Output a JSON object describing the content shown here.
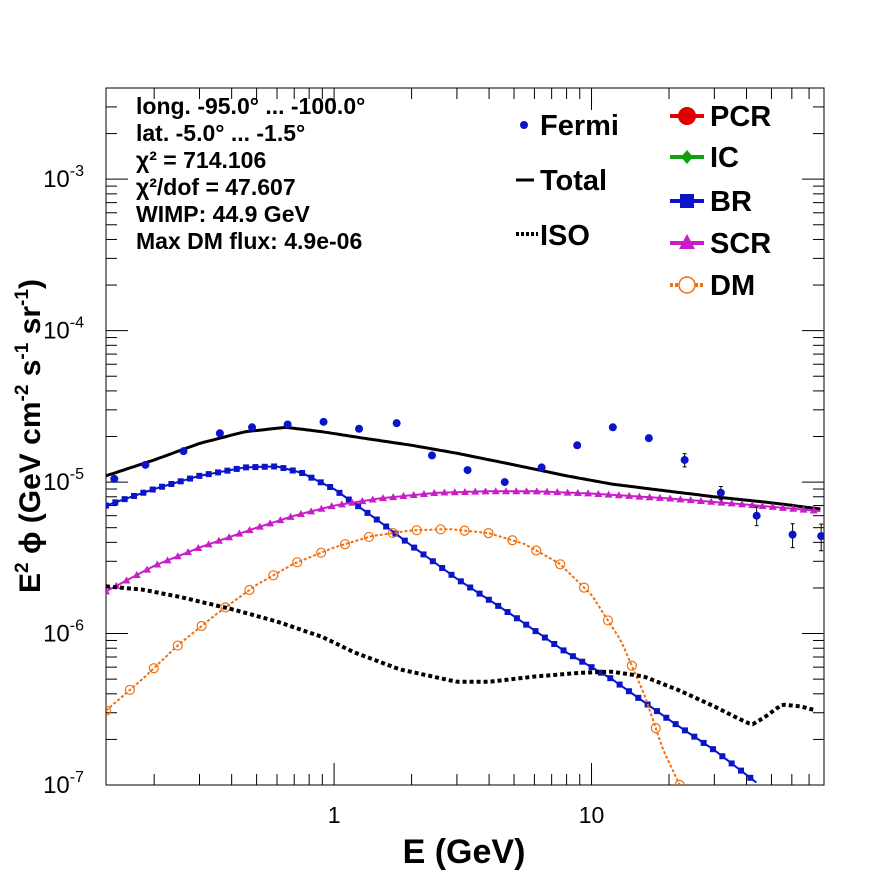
{
  "chart_data": {
    "type": "scatter",
    "x_scale": "log",
    "y_scale": "log",
    "xlim": [
      0.13,
      80
    ],
    "ylim": [
      1e-07,
      0.004
    ],
    "xlabel": "E (GeV)",
    "ylabel": "E² ϕ (GeV cm⁻² s⁻¹ sr⁻¹)",
    "x_ticks": [
      {
        "value": 1,
        "label": "1"
      },
      {
        "value": 10,
        "label": "10"
      }
    ],
    "y_ticks": [
      {
        "value": 1e-07,
        "base": "10",
        "exp": "-7"
      },
      {
        "value": 1e-06,
        "base": "10",
        "exp": "-6"
      },
      {
        "value": 1e-05,
        "base": "10",
        "exp": "-5"
      },
      {
        "value": 0.0001,
        "base": "10",
        "exp": "-4"
      },
      {
        "value": 0.001,
        "base": "10",
        "exp": "-3"
      }
    ],
    "info_lines": [
      "long. -95.0° ... -100.0°",
      "lat. -5.0° ... -1.5°",
      "χ² = 714.106",
      "χ²/dof = 47.607",
      "WIMP: 44.9 GeV",
      "Max DM flux: 4.9e-06"
    ],
    "legend_left": [
      {
        "label": "Fermi",
        "marker": "dot",
        "color": "#0a14c8"
      },
      {
        "label": "Total",
        "marker": "line",
        "color": "#000000"
      },
      {
        "label": "ISO",
        "marker": "dotted",
        "color": "#000000"
      }
    ],
    "legend_right": [
      {
        "label": "PCR",
        "marker": "circle",
        "color": "#e00000"
      },
      {
        "label": "IC",
        "marker": "diamond",
        "color": "#10a010"
      },
      {
        "label": "BR",
        "marker": "square",
        "color": "#0a14c8"
      },
      {
        "label": "SCR",
        "marker": "triangle",
        "color": "#c81ec8"
      },
      {
        "label": "DM",
        "marker": "open-circle",
        "color": "#f07010"
      }
    ],
    "fermi": {
      "name": "Fermi",
      "color": "#0a14c8",
      "points": [
        {
          "x": 0.14,
          "y": 1.05e-05
        },
        {
          "x": 0.185,
          "y": 1.3e-05
        },
        {
          "x": 0.26,
          "y": 1.6e-05
        },
        {
          "x": 0.36,
          "y": 2.1e-05
        },
        {
          "x": 0.48,
          "y": 2.3e-05
        },
        {
          "x": 0.66,
          "y": 2.4e-05
        },
        {
          "x": 0.91,
          "y": 2.5e-05
        },
        {
          "x": 1.25,
          "y": 2.25e-05
        },
        {
          "x": 1.75,
          "y": 2.45e-05
        },
        {
          "x": 2.4,
          "y": 1.5e-05
        },
        {
          "x": 3.3,
          "y": 1.2e-05
        },
        {
          "x": 4.6,
          "y": 1e-05
        },
        {
          "x": 6.4,
          "y": 1.25e-05
        },
        {
          "x": 8.8,
          "y": 1.75e-05
        },
        {
          "x": 12.1,
          "y": 2.3e-05
        },
        {
          "x": 16.7,
          "y": 1.95e-05
        },
        {
          "x": 23,
          "y": 1.4e-05,
          "err": 0.1
        },
        {
          "x": 31.8,
          "y": 8.5e-06,
          "err": 0.1
        },
        {
          "x": 43.8,
          "y": 6e-06,
          "err": 0.14
        },
        {
          "x": 60.4,
          "y": 4.5e-06,
          "err": 0.18
        },
        {
          "x": 78,
          "y": 4.4e-06,
          "err": 0.2
        }
      ]
    },
    "series": [
      {
        "name": "Total",
        "style": "solid",
        "color": "#000000",
        "points": [
          [
            0.13,
            1.1e-05
          ],
          [
            0.2,
            1.4e-05
          ],
          [
            0.3,
            1.8e-05
          ],
          [
            0.45,
            2.15e-05
          ],
          [
            0.65,
            2.3e-05
          ],
          [
            0.9,
            2.15e-05
          ],
          [
            1.3,
            1.95e-05
          ],
          [
            2,
            1.75e-05
          ],
          [
            3,
            1.55e-05
          ],
          [
            5,
            1.3e-05
          ],
          [
            8,
            1.1e-05
          ],
          [
            12,
            9.7e-06
          ],
          [
            20,
            8.7e-06
          ],
          [
            30,
            8e-06
          ],
          [
            50,
            7.3e-06
          ],
          [
            80,
            6.6e-06
          ]
        ]
      },
      {
        "name": "BR",
        "style": "square",
        "color": "#0a14c8",
        "points": [
          [
            0.13,
            7e-06
          ],
          [
            0.2,
            9e-06
          ],
          [
            0.3,
            1.1e-05
          ],
          [
            0.45,
            1.25e-05
          ],
          [
            0.6,
            1.27e-05
          ],
          [
            0.75,
            1.15e-05
          ],
          [
            1,
            9e-06
          ],
          [
            1.5,
            5.5e-06
          ],
          [
            2,
            3.8e-06
          ],
          [
            3,
            2.3e-06
          ],
          [
            5,
            1.3e-06
          ],
          [
            8,
            7.5e-07
          ],
          [
            12,
            5e-07
          ],
          [
            20,
            2.7e-07
          ],
          [
            30,
            1.7e-07
          ],
          [
            45,
            1e-07
          ]
        ]
      },
      {
        "name": "SCR",
        "style": "triangle",
        "color": "#c81ec8",
        "points": [
          [
            0.13,
            1.9e-06
          ],
          [
            0.2,
            2.8e-06
          ],
          [
            0.3,
            3.7e-06
          ],
          [
            0.5,
            5e-06
          ],
          [
            0.7,
            6e-06
          ],
          [
            1,
            7e-06
          ],
          [
            1.5,
            7.8e-06
          ],
          [
            2.5,
            8.5e-06
          ],
          [
            4,
            8.7e-06
          ],
          [
            6,
            8.7e-06
          ],
          [
            10,
            8.4e-06
          ],
          [
            20,
            7.8e-06
          ],
          [
            40,
            7.1e-06
          ],
          [
            80,
            6.4e-06
          ]
        ]
      },
      {
        "name": "DM",
        "style": "open-circle",
        "color": "#f07010",
        "points": [
          [
            0.13,
            3.1e-07
          ],
          [
            0.18,
            5e-07
          ],
          [
            0.25,
            8.5e-07
          ],
          [
            0.35,
            1.35e-06
          ],
          [
            0.5,
            2.1e-06
          ],
          [
            0.7,
            2.9e-06
          ],
          [
            1,
            3.7e-06
          ],
          [
            1.4,
            4.4e-06
          ],
          [
            2,
            4.8e-06
          ],
          [
            2.8,
            4.9e-06
          ],
          [
            4,
            4.6e-06
          ],
          [
            5.5,
            3.9e-06
          ],
          [
            7.5,
            2.9e-06
          ],
          [
            10,
            1.8e-06
          ],
          [
            13,
            9e-07
          ],
          [
            16,
            4e-07
          ],
          [
            19,
            1.7e-07
          ],
          [
            22,
            1e-07
          ]
        ]
      },
      {
        "name": "ISO",
        "style": "dotted",
        "color": "#000000",
        "points": [
          [
            0.13,
            2.05e-06
          ],
          [
            0.18,
            1.95e-06
          ],
          [
            0.25,
            1.75e-06
          ],
          [
            0.4,
            1.45e-06
          ],
          [
            0.6,
            1.2e-06
          ],
          [
            0.9,
            9.5e-07
          ],
          [
            1.2,
            7.5e-07
          ],
          [
            1.8,
            5.8e-07
          ],
          [
            3,
            4.8e-07
          ],
          [
            4,
            4.8e-07
          ],
          [
            6,
            5.2e-07
          ],
          [
            9,
            5.5e-07
          ],
          [
            12,
            5.6e-07
          ],
          [
            16,
            5.2e-07
          ],
          [
            22,
            4.2e-07
          ],
          [
            30,
            3.3e-07
          ],
          [
            38,
            2.7e-07
          ],
          [
            42,
            2.5e-07
          ],
          [
            47,
            2.8e-07
          ],
          [
            55,
            3.4e-07
          ],
          [
            65,
            3.3e-07
          ],
          [
            75,
            3.1e-07
          ]
        ]
      }
    ]
  }
}
